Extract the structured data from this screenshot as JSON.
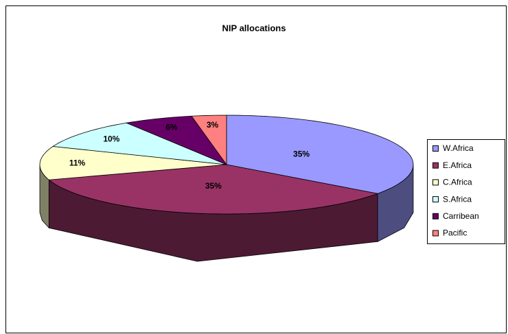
{
  "chart_data": {
    "type": "pie",
    "title": "NIP allocations",
    "categories": [
      "W.Africa",
      "E.Africa",
      "C.Africa",
      "S.Africa",
      "Carribean",
      "Pacific"
    ],
    "values": [
      35,
      35,
      11,
      10,
      6,
      3
    ],
    "value_labels": [
      "35%",
      "35%",
      "11%",
      "10%",
      "6%",
      "3%"
    ],
    "colors": [
      "#9999ff",
      "#993366",
      "#ffffcc",
      "#ccffff",
      "#660066",
      "#ff8080"
    ],
    "legend": "right"
  }
}
